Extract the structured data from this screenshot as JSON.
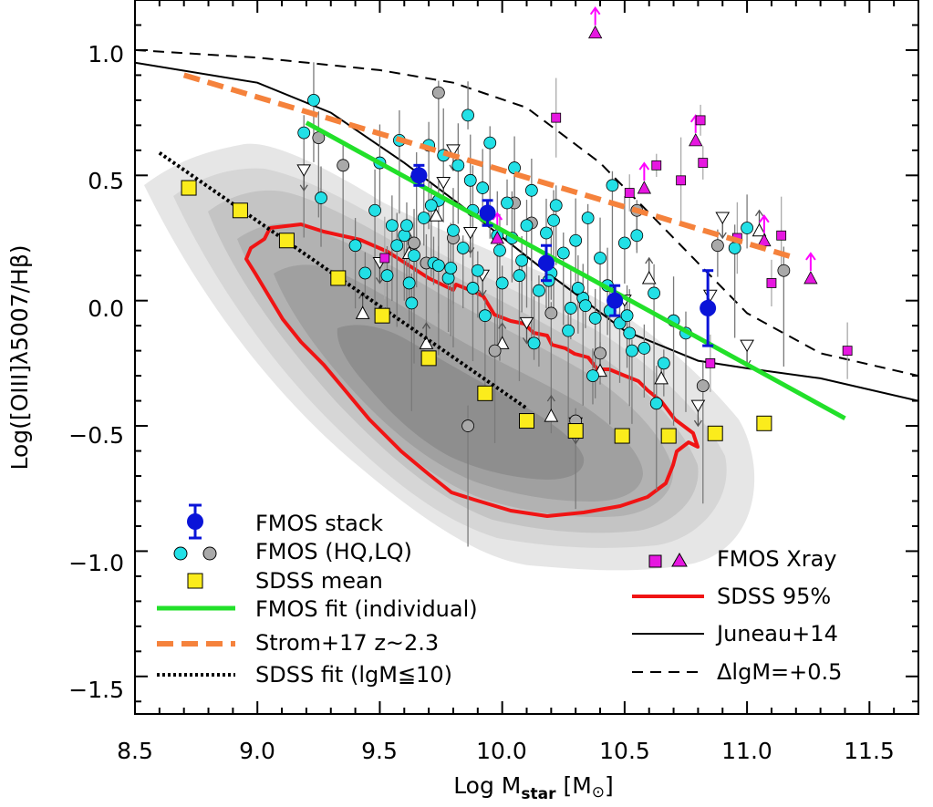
{
  "chart_data": {
    "type": "scatter",
    "xlabel": {
      "main": "Log M",
      "sub": "star",
      "unit": "[M",
      "unit_symbol": "⊙",
      "unit_close": "]"
    },
    "ylabel": "Log([OIII]λ5007/Hβ)",
    "xlim": [
      8.5,
      11.7
    ],
    "ylim": [
      -1.65,
      1.2
    ],
    "xticks": [
      "8.5",
      "9.0",
      "9.5",
      "10.0",
      "10.5",
      "11.0",
      "11.5"
    ],
    "yticks": [
      "−1.5",
      "−1.0",
      "−0.5",
      "0.0",
      "0.5",
      "1.0"
    ],
    "grid": false,
    "legend_left": [
      {
        "key": "stack",
        "label": "FMOS stack"
      },
      {
        "key": "hq_lq",
        "label": "FMOS (HQ,LQ)"
      },
      {
        "key": "sdss_mean",
        "label": "SDSS mean"
      },
      {
        "key": "fmos_fit",
        "label": "FMOS fit (individual)"
      },
      {
        "key": "strom",
        "label": "Strom+17 z~2.3"
      },
      {
        "key": "sdss_fit",
        "label": "SDSS fit (lgM≦10)"
      }
    ],
    "legend_right": [
      {
        "key": "xray",
        "label": "FMOS Xray"
      },
      {
        "key": "sdss95",
        "label": "SDSS 95%"
      },
      {
        "key": "juneau",
        "label": "Juneau+14"
      },
      {
        "key": "dlgm",
        "label": "ΔlgM=+0.5"
      }
    ],
    "colors": {
      "stack": "#0a14d8",
      "hq": "#22e0e6",
      "lq": "#a9a9a9",
      "sdss_mean": "#fbec1c",
      "fmos_fit": "#22e02a",
      "strom": "#f5823c",
      "sdss_fit": "#000000",
      "xray": "#e617e0",
      "xray_arrow": "#ff00ff",
      "sdss95": "#f01414",
      "density": [
        "#e6e6e6",
        "#d6d6d6",
        "#c4c4c4",
        "#b2b2b2",
        "#a0a0a0",
        "#8e8e8e"
      ]
    },
    "series": [
      {
        "name": "FMOS stack",
        "x": [
          9.66,
          9.94,
          10.18,
          10.46,
          10.84
        ],
        "y": [
          0.5,
          0.35,
          0.15,
          0.0,
          -0.03
        ],
        "err": [
          0.04,
          0.05,
          0.07,
          0.06,
          0.15
        ]
      },
      {
        "name": "SDSS mean",
        "x": [
          8.72,
          8.93,
          9.12,
          9.33,
          9.51,
          9.7,
          9.93,
          10.1,
          10.3,
          10.49,
          10.68,
          10.87,
          11.07
        ],
        "y": [
          0.45,
          0.36,
          0.24,
          0.09,
          -0.06,
          -0.23,
          -0.37,
          -0.48,
          -0.52,
          -0.54,
          -0.54,
          -0.53,
          -0.49
        ]
      },
      {
        "name": "FMOS fit (individual)",
        "x": [
          9.2,
          11.4
        ],
        "y": [
          0.71,
          -0.47
        ]
      },
      {
        "name": "Strom+17 z~2.3",
        "x": [
          8.7,
          11.2
        ],
        "y": [
          0.9,
          0.17
        ]
      },
      {
        "name": "SDSS fit (lgM≦10)",
        "x": [
          8.6,
          10.1
        ],
        "y": [
          0.59,
          -0.43
        ]
      },
      {
        "name": "Juneau+14",
        "x": [
          8.5,
          9.0,
          9.3,
          9.6,
          9.9,
          10.2,
          10.5,
          10.8,
          11.0,
          11.3,
          11.7
        ],
        "y": [
          0.95,
          0.87,
          0.75,
          0.55,
          0.33,
          0.1,
          -0.12,
          -0.24,
          -0.27,
          -0.31,
          -0.4
        ]
      },
      {
        "name": "ΔlgM=+0.5",
        "x": [
          8.5,
          9.0,
          9.5,
          9.8,
          10.1,
          10.4,
          10.7,
          11.0,
          11.3,
          11.7
        ],
        "y": [
          1.0,
          0.97,
          0.92,
          0.87,
          0.77,
          0.55,
          0.25,
          -0.05,
          -0.21,
          -0.3
        ]
      },
      {
        "name": "FMOS HQ",
        "x": [
          9.19,
          9.23,
          9.26,
          9.4,
          9.44,
          9.48,
          9.5,
          9.53,
          9.55,
          9.58,
          9.6,
          9.62,
          9.64,
          9.65,
          9.68,
          9.7,
          9.72,
          9.74,
          9.76,
          9.78,
          9.8,
          9.82,
          9.84,
          9.86,
          9.88,
          9.9,
          9.92,
          9.95,
          9.98,
          10.0,
          10.02,
          10.05,
          10.08,
          10.1,
          10.12,
          10.15,
          10.18,
          10.2,
          10.22,
          10.25,
          10.28,
          10.3,
          10.33,
          10.35,
          10.38,
          10.4,
          10.43,
          10.45,
          10.48,
          10.5,
          10.52,
          10.55,
          10.58,
          10.62,
          10.66,
          10.7,
          10.75,
          10.95,
          11.0,
          9.57,
          9.63,
          9.71,
          9.79,
          9.87,
          9.93,
          9.99,
          10.07,
          10.13,
          10.21,
          10.27,
          10.31,
          10.37,
          10.44,
          10.53,
          10.63,
          9.61,
          9.74,
          9.88,
          10.04,
          10.19,
          10.34,
          10.51
        ],
        "y": [
          0.67,
          0.8,
          0.41,
          0.22,
          0.11,
          0.36,
          0.55,
          0.1,
          0.3,
          0.64,
          0.26,
          0.07,
          0.18,
          0.49,
          0.33,
          0.62,
          0.15,
          0.4,
          0.58,
          0.09,
          0.28,
          0.54,
          0.21,
          0.74,
          0.36,
          0.12,
          0.45,
          0.63,
          0.26,
          0.07,
          0.39,
          0.53,
          0.16,
          0.3,
          0.44,
          0.04,
          0.27,
          0.11,
          0.38,
          0.19,
          -0.03,
          0.24,
          0.01,
          0.33,
          -0.07,
          0.17,
          0.06,
          0.46,
          -0.09,
          0.23,
          -0.13,
          0.26,
          -0.19,
          0.03,
          -0.25,
          -0.08,
          -0.13,
          0.21,
          0.29,
          0.22,
          -0.01,
          0.38,
          0.13,
          0.48,
          -0.06,
          0.2,
          0.1,
          -0.17,
          0.32,
          -0.12,
          0.05,
          -0.3,
          -0.04,
          -0.2,
          -0.41,
          0.3,
          0.14,
          0.05,
          0.25,
          0.08,
          -0.02,
          -0.06
        ]
      },
      {
        "name": "FMOS LQ",
        "x": [
          9.25,
          9.35,
          9.64,
          9.69,
          9.74,
          9.8,
          9.97,
          10.05,
          10.12,
          10.2,
          10.3,
          10.4,
          10.55,
          10.88,
          11.15,
          10.82,
          9.86
        ],
        "y": [
          0.65,
          0.54,
          0.23,
          0.15,
          0.83,
          0.25,
          -0.2,
          0.39,
          0.31,
          -0.05,
          -0.48,
          -0.21,
          0.36,
          0.22,
          0.12,
          -0.34,
          -0.5
        ]
      },
      {
        "name": "FMOS triangles (upper limits)",
        "x": [
          9.19,
          9.43,
          9.5,
          9.69,
          9.73,
          9.76,
          9.8,
          9.87,
          10.0,
          10.1,
          10.2,
          10.3,
          10.4,
          10.5,
          10.6,
          10.65,
          10.8,
          10.85,
          10.9,
          11.0,
          11.05,
          9.62,
          9.92
        ],
        "y": [
          0.52,
          -0.05,
          0.15,
          -0.17,
          0.34,
          0.47,
          0.6,
          0.27,
          -0.17,
          -0.09,
          -0.46,
          -0.49,
          -0.28,
          0.0,
          0.09,
          -0.31,
          -0.42,
          0.02,
          0.33,
          -0.18,
          0.28,
          0.19,
          0.1
        ]
      },
      {
        "name": "FMOS Xray",
        "x": [
          9.52,
          9.98,
          10.22,
          10.52,
          10.58,
          10.63,
          10.73,
          10.79,
          10.81,
          10.96,
          11.07,
          11.1,
          11.14,
          11.26,
          11.41,
          10.82,
          10.38,
          10.85
        ],
        "y": [
          0.17,
          0.25,
          0.73,
          0.43,
          0.45,
          0.54,
          0.48,
          0.64,
          0.72,
          0.25,
          0.24,
          0.07,
          0.26,
          0.09,
          -0.2,
          0.55,
          1.07,
          -0.25
        ]
      }
    ]
  }
}
